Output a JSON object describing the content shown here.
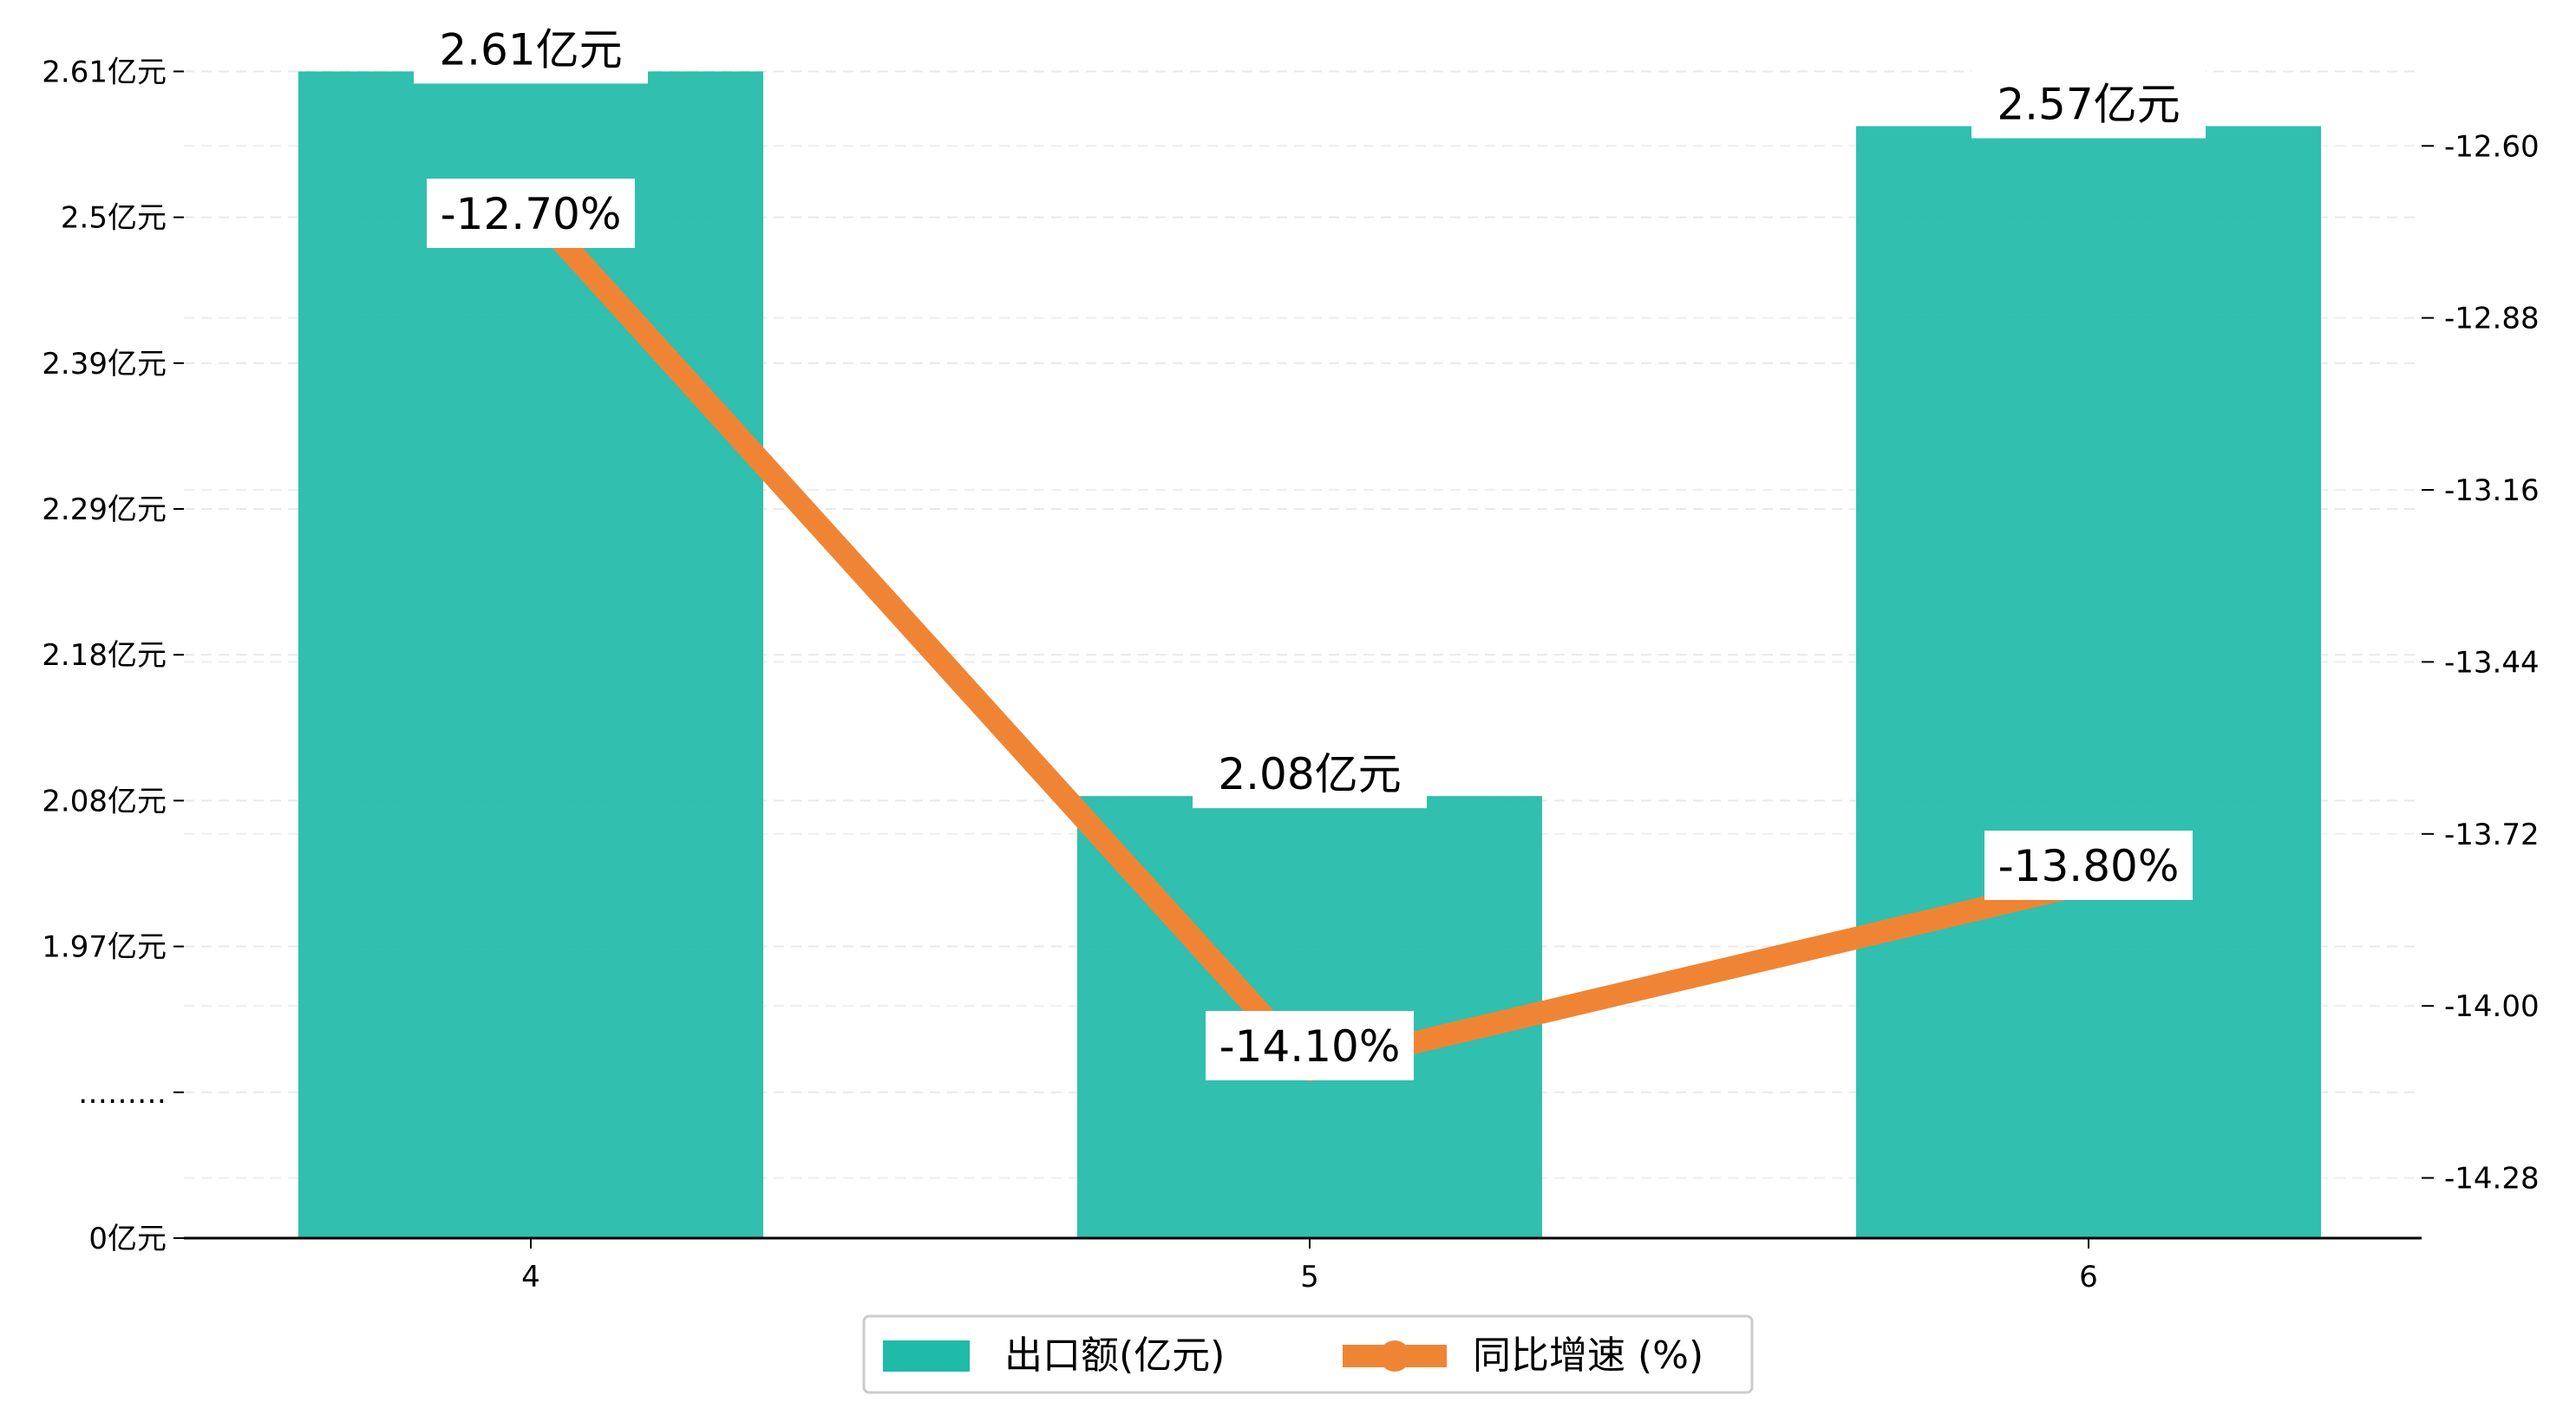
{
  "chart_data": {
    "type": "bar",
    "categories": [
      "4",
      "5",
      "6"
    ],
    "series": [
      {
        "name": "出口额(亿元)",
        "type": "bar",
        "axis": "left",
        "values": [
          2.61,
          2.08,
          2.57
        ],
        "labels": [
          "2.61亿元",
          "2.08亿元",
          "2.57亿元"
        ],
        "color": "#1fbaa8"
      },
      {
        "name": "同比增速 (%)",
        "type": "line",
        "axis": "right",
        "values": [
          -12.7,
          -14.1,
          -13.8
        ],
        "labels": [
          "-12.70%",
          "-14.10%",
          "-13.80%"
        ],
        "color": "#ef8534"
      }
    ],
    "left_axis": {
      "ticks": [
        "0亿元",
        "………",
        "1.97亿元",
        "2.08亿元",
        "2.18亿元",
        "2.29亿元",
        "2.39亿元",
        "2.5亿元",
        "2.61亿元"
      ],
      "broken": true
    },
    "right_axis": {
      "ticks": [
        "-14.28",
        "-14.00",
        "-13.72",
        "-13.44",
        "-13.16",
        "-12.88",
        "-12.60"
      ],
      "ylim": [
        -14.378,
        -12.45
      ]
    },
    "grid": true,
    "legend_position": "bottom-center"
  }
}
